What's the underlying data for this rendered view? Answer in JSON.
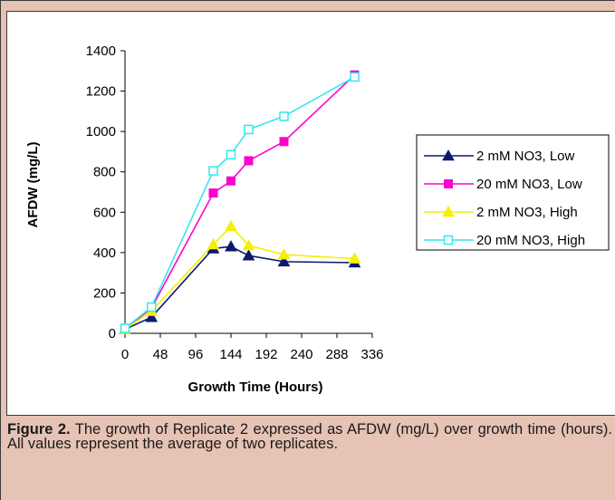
{
  "caption": {
    "label": "Figure 2.",
    "text": "The growth of Replicate 2 expressed as AFDW (mg/L) over growth time (hours). All values represent the average of two replicates."
  },
  "chart_data": {
    "type": "line",
    "xlabel": "Growth Time (Hours)",
    "ylabel": "AFDW (mg/L)",
    "xlim": [
      0,
      336
    ],
    "ylim": [
      0,
      1400
    ],
    "xticks": [
      0,
      48,
      96,
      144,
      192,
      240,
      288,
      336
    ],
    "yticks": [
      0,
      200,
      400,
      600,
      800,
      1000,
      1200,
      1400
    ],
    "grid": false,
    "legend_position": "right",
    "series": [
      {
        "name": "2 mM NO3, Low",
        "color": "#0b1a6b",
        "marker": "triangle-filled",
        "x": [
          0,
          36,
          120,
          144,
          168,
          216,
          312
        ],
        "y": [
          20,
          80,
          420,
          430,
          385,
          355,
          350
        ]
      },
      {
        "name": "20 mM NO3, Low",
        "color": "#ff00cc",
        "marker": "square-filled",
        "x": [
          0,
          36,
          120,
          144,
          168,
          216,
          312
        ],
        "y": [
          20,
          125,
          695,
          755,
          855,
          950,
          1280
        ]
      },
      {
        "name": "2 mM NO3, High",
        "color": "#f4f000",
        "marker": "triangle-filled",
        "x": [
          0,
          36,
          120,
          144,
          168,
          216,
          312
        ],
        "y": [
          20,
          110,
          440,
          530,
          435,
          390,
          370
        ]
      },
      {
        "name": "20 mM NO3, High",
        "color": "#33e6f0",
        "marker": "square-open",
        "x": [
          0,
          36,
          120,
          144,
          168,
          216,
          312
        ],
        "y": [
          25,
          130,
          805,
          885,
          1010,
          1075,
          1270
        ]
      }
    ]
  }
}
